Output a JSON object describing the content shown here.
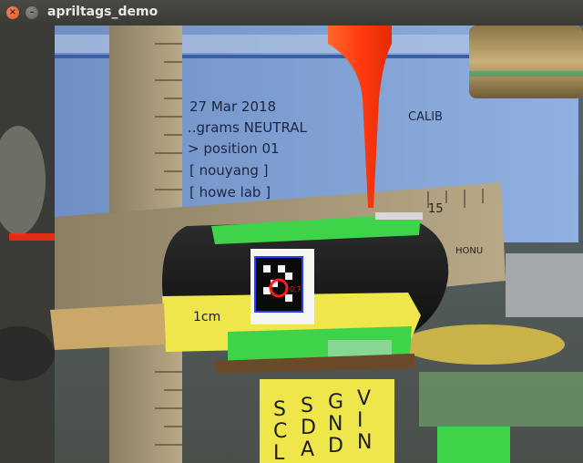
{
  "window": {
    "title": "apriltags_demo",
    "close_symbol": "×",
    "minimize_symbol": "–"
  },
  "scene": {
    "screen_lines": [
      "27 Mar 2018",
      "..grams NEUTRAL",
      "> position 01",
      "[ nouyang ]",
      "[ howe lab ]"
    ],
    "screen_label_right": "CALIB",
    "ruler_number": "15",
    "ruler_brand": "HONU",
    "tape_label": "1cm",
    "tag_id": "0,7",
    "pins_column1": [
      "S",
      "C",
      "L"
    ],
    "pins_column2": [
      "S",
      "D",
      "A"
    ],
    "pins_column3": [
      "G",
      "N",
      "D"
    ],
    "pins_column4": [
      "V",
      "I",
      "N"
    ]
  },
  "colors": {
    "tag_outline": "#2a3cff",
    "detection_circle": "#ff1a1a",
    "tape_green": "#3fd34a",
    "tape_yellow": "#efe64b",
    "probe_orange": "#ff4a1a"
  }
}
